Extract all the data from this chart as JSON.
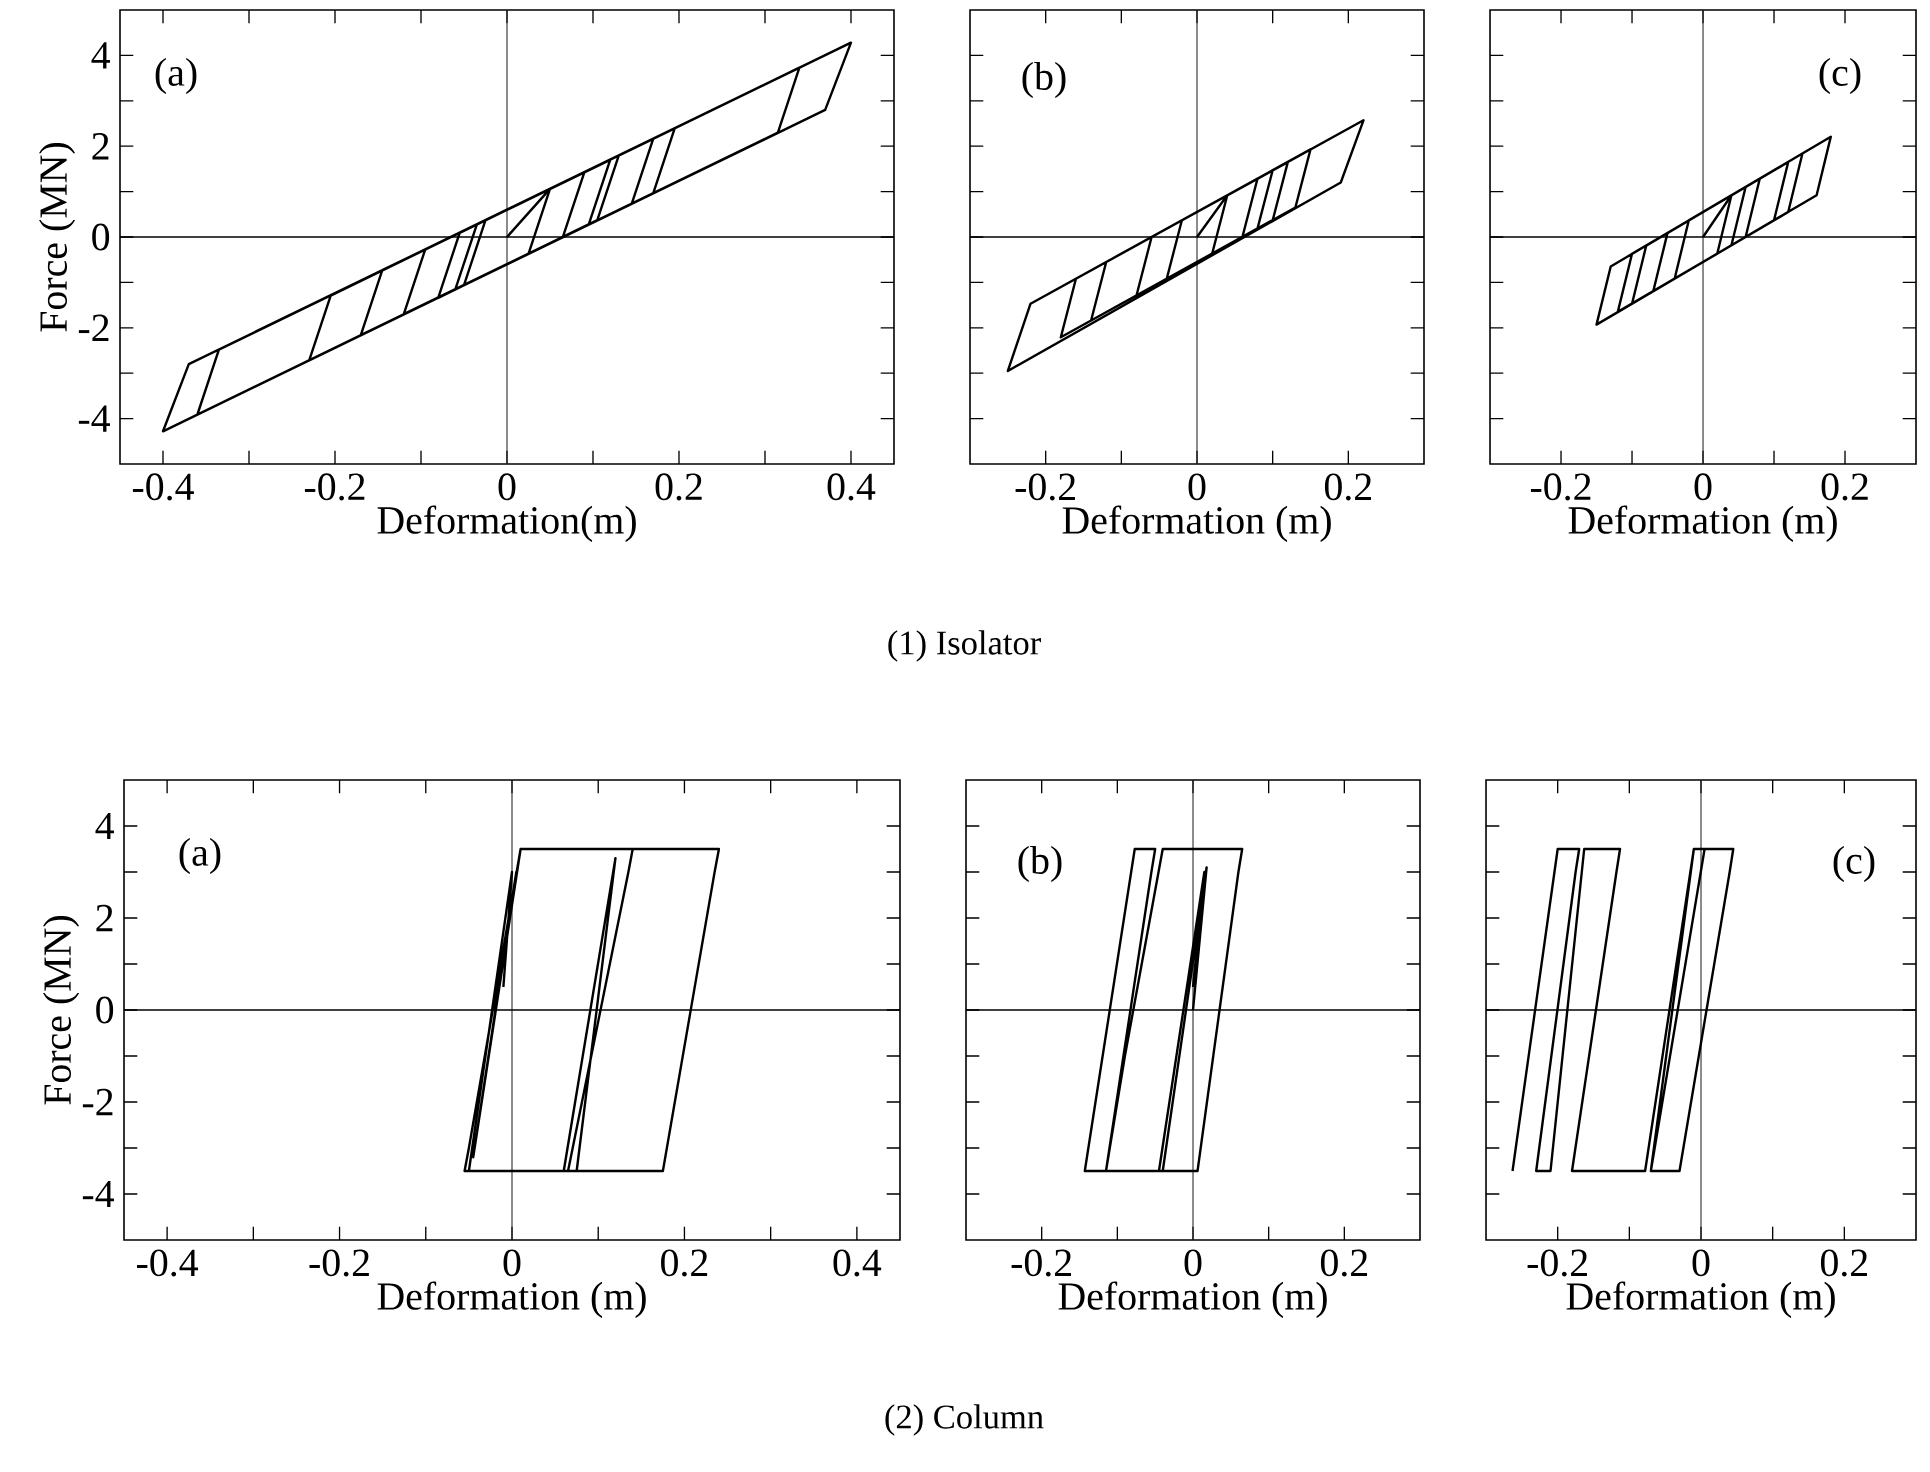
{
  "chart_data": [
    {
      "type": "line",
      "xlabel": "Deformation(m)",
      "ylabel": "Force (MN)",
      "annotations": [
        "(a)"
      ],
      "xlim": [
        -0.45,
        0.45
      ],
      "ylim": [
        -5,
        5
      ],
      "xticks": [
        -0.4,
        {
          "value": -0.3,
          "label": null
        },
        -0.2,
        {
          "value": -0.1,
          "label": null
        },
        0,
        {
          "value": 0.1,
          "label": null
        },
        0.2,
        {
          "value": 0.3,
          "label": null
        },
        0.4
      ],
      "yticks": [
        -4,
        {
          "value": -3,
          "label": null
        },
        -2,
        {
          "value": -1,
          "label": null
        },
        0,
        {
          "value": 1,
          "label": null
        },
        2,
        {
          "value": 3,
          "label": null
        },
        4
      ],
      "ref_lines": [
        {
          "axis": "x",
          "value": 0
        },
        {
          "axis": "y",
          "value": 0
        }
      ],
      "series": [
        {
          "color": "#000000",
          "x": [
            0,
            0.05,
            0.025,
            -0.05,
            -0.025,
            0.09,
            0.065,
            -0.08,
            -0.055,
            0.13,
            0.105,
            -0.12,
            -0.095,
            0.17,
            0.145,
            -0.17,
            -0.145,
            0.195,
            0.17,
            -0.23,
            -0.205,
            0.4,
            0.37,
            -0.4,
            -0.37,
            0.34,
            0.315,
            -0.36,
            -0.335,
            0.12,
            0.095,
            -0.06,
            -0.035,
            0.02
          ],
          "values": [
            0,
            1.06,
            -0.37,
            -1.06,
            0.37,
            1.43,
            0,
            -1.34,
            0.09,
            1.8,
            0.37,
            -1.7,
            -0.27,
            2.16,
            0.73,
            -2.16,
            -0.73,
            2.39,
            0.96,
            -2.72,
            -1.29,
            4.28,
            2.8,
            -4.28,
            -2.8,
            3.73,
            2.3,
            -3.91,
            -2.48,
            1.7,
            0.27,
            -1.15,
            0.28,
            0.78
          ]
        }
      ]
    },
    {
      "type": "line",
      "xlabel": "Deformation (m)",
      "annotations": [
        "(b)",
        "(1) Isolator"
      ],
      "xlim": [
        -0.3,
        0.3
      ],
      "ylim": [
        -5,
        5
      ],
      "tick_labels": "x",
      "xticks": [
        -0.2,
        {
          "value": -0.1,
          "label": null
        },
        0,
        {
          "value": 0.1,
          "label": null
        },
        0.2
      ],
      "yticks": [
        -4,
        {
          "value": -3,
          "label": null
        },
        -2,
        {
          "value": -1,
          "label": null
        },
        0,
        {
          "value": 1,
          "label": null
        },
        2,
        {
          "value": 3,
          "label": null
        },
        4
      ],
      "ref_lines": [
        {
          "axis": "x",
          "value": 0
        },
        {
          "axis": "y",
          "value": 0
        }
      ],
      "series": [
        {
          "color": "#000000",
          "x": [
            0,
            0.04,
            0.02,
            -0.04,
            -0.02,
            0.08,
            0.06,
            -0.08,
            -0.06,
            0.12,
            0.1,
            -0.14,
            -0.12,
            0.22,
            0.19,
            -0.25,
            -0.22,
            0.15,
            0.13,
            -0.18,
            -0.16,
            0.1,
            0.08
          ],
          "values": [
            0,
            0.92,
            -0.37,
            -0.92,
            0.37,
            1.29,
            0,
            -1.29,
            0,
            1.65,
            0.37,
            -1.84,
            -0.55,
            2.57,
            1.2,
            -2.95,
            -1.47,
            1.93,
            0.65,
            -2.21,
            -0.92,
            1.47,
            0.19
          ]
        }
      ]
    },
    {
      "type": "line",
      "xlabel": "Deformation (m)",
      "annotations": [
        "(c)"
      ],
      "xlim": [
        -0.3,
        0.3
      ],
      "ylim": [
        -5,
        5
      ],
      "tick_labels": "x",
      "xticks": [
        -0.2,
        {
          "value": -0.1,
          "label": null
        },
        0,
        {
          "value": 0.1,
          "label": null
        },
        0.2
      ],
      "yticks": [
        -4,
        {
          "value": -3,
          "label": null
        },
        -2,
        {
          "value": -1,
          "label": null
        },
        0,
        {
          "value": 1,
          "label": null
        },
        2,
        {
          "value": 3,
          "label": null
        },
        4
      ],
      "ref_lines": [
        {
          "axis": "x",
          "value": 0
        },
        {
          "axis": "y",
          "value": 0
        }
      ],
      "series": [
        {
          "color": "#000000",
          "x": [
            0,
            0.04,
            0.02,
            -0.04,
            -0.02,
            0.08,
            0.06,
            -0.07,
            -0.05,
            0.12,
            0.1,
            -0.1,
            -0.08,
            0.18,
            0.16,
            -0.15,
            -0.13,
            0.14,
            0.12,
            -0.12,
            -0.1,
            0.06,
            0.04
          ],
          "values": [
            0,
            0.92,
            -0.37,
            -0.92,
            0.37,
            1.29,
            0,
            -1.19,
            0.09,
            1.65,
            0.37,
            -1.47,
            -0.19,
            2.21,
            0.92,
            -1.93,
            -0.65,
            1.84,
            0.55,
            -1.65,
            -0.37,
            1.1,
            -0.18
          ]
        }
      ]
    },
    {
      "type": "line",
      "xlabel": "Deformation (m)",
      "ylabel": "Force (MN)",
      "annotations": [
        "(a)"
      ],
      "xlim": [
        -0.45,
        0.45
      ],
      "ylim": [
        -5,
        5
      ],
      "xticks": [
        -0.4,
        {
          "value": -0.3,
          "label": null
        },
        -0.2,
        {
          "value": -0.1,
          "label": null
        },
        0,
        {
          "value": 0.1,
          "label": null
        },
        0.2,
        {
          "value": 0.3,
          "label": null
        },
        0.4
      ],
      "yticks": [
        -4,
        {
          "value": -3,
          "label": null
        },
        -2,
        {
          "value": -1,
          "label": null
        },
        0,
        {
          "value": 1,
          "label": null
        },
        2,
        {
          "value": 3,
          "label": null
        },
        4
      ],
      "ref_lines": [
        {
          "axis": "x",
          "value": 0
        },
        {
          "axis": "y",
          "value": 0
        }
      ],
      "series": [
        {
          "color": "#000000",
          "x": [
            -0.02,
            0.005,
            -0.045,
            0.01,
            0.24,
            0.235,
            0.175,
            -0.055,
            -0.05,
            0.01,
            0.14,
            0.135,
            0.065,
            0.06,
            0.12,
            0.075,
            -0.05,
            0,
            -0.01
          ],
          "values": [
            0,
            3,
            -3.2,
            3.5,
            3.5,
            3,
            -3.5,
            -3.5,
            -3,
            3.5,
            3.5,
            3,
            -3.5,
            -3.5,
            3.3,
            -3.5,
            -3.5,
            3,
            0.5
          ]
        }
      ]
    },
    {
      "type": "line",
      "xlabel": "Deformation (m)",
      "annotations": [
        "(b)",
        "(2) Column"
      ],
      "xlim": [
        -0.3,
        0.3
      ],
      "ylim": [
        -5,
        5
      ],
      "tick_labels": "x",
      "xticks": [
        -0.2,
        {
          "value": -0.1,
          "label": null
        },
        0,
        {
          "value": 0.1,
          "label": null
        },
        0.2
      ],
      "yticks": [
        -4,
        {
          "value": -3,
          "label": null
        },
        -2,
        {
          "value": -1,
          "label": null
        },
        0,
        {
          "value": 1,
          "label": null
        },
        2,
        {
          "value": 3,
          "label": null
        },
        4
      ],
      "ref_lines": [
        {
          "axis": "x",
          "value": 0
        },
        {
          "axis": "y",
          "value": 0
        }
      ],
      "series": [
        {
          "color": "#000000",
          "x": [
            0,
            0.018,
            -0.04,
            -0.143,
            -0.077,
            -0.05,
            -0.055,
            -0.115,
            -0.09,
            -0.04,
            0.065,
            0.06,
            0.006,
            -0.045,
            0.015,
            0
          ],
          "values": [
            0,
            3.1,
            -3.5,
            -3.5,
            3.5,
            3.5,
            3,
            -3.5,
            -1,
            3.5,
            3.5,
            3,
            -3.5,
            -3.5,
            3,
            0.5
          ]
        }
      ]
    },
    {
      "type": "line",
      "xlabel": "Deformation (m)",
      "annotations": [
        "(c)"
      ],
      "xlim": [
        -0.3,
        0.3
      ],
      "ylim": [
        -5,
        5
      ],
      "tick_labels": "x",
      "xticks": [
        -0.2,
        {
          "value": -0.1,
          "label": null
        },
        0,
        {
          "value": 0.1,
          "label": null
        },
        0.2
      ],
      "yticks": [
        -4,
        {
          "value": -3,
          "label": null
        },
        -2,
        {
          "value": -1,
          "label": null
        },
        0,
        {
          "value": 1,
          "label": null
        },
        2,
        {
          "value": 3,
          "label": null
        },
        4
      ],
      "ref_lines": [
        {
          "axis": "x",
          "value": 0
        },
        {
          "axis": "y",
          "value": 0
        }
      ],
      "series": [
        {
          "color": "#000000",
          "x": [
            -0.263,
            -0.2,
            -0.17,
            -0.175,
            -0.23,
            -0.21,
            -0.163,
            -0.113,
            -0.118,
            -0.18,
            -0.078,
            -0.01,
            0.045,
            0.04,
            -0.03,
            -0.07,
            0.005,
            -0.01,
            -0.07
          ],
          "values": [
            -3.5,
            3.5,
            3.5,
            3,
            -3.5,
            -3.5,
            3.5,
            3.5,
            3,
            -3.5,
            -3.5,
            3.5,
            3.5,
            3,
            -3.5,
            -3.5,
            3.5,
            3.5,
            -3.5
          ]
        }
      ]
    }
  ]
}
